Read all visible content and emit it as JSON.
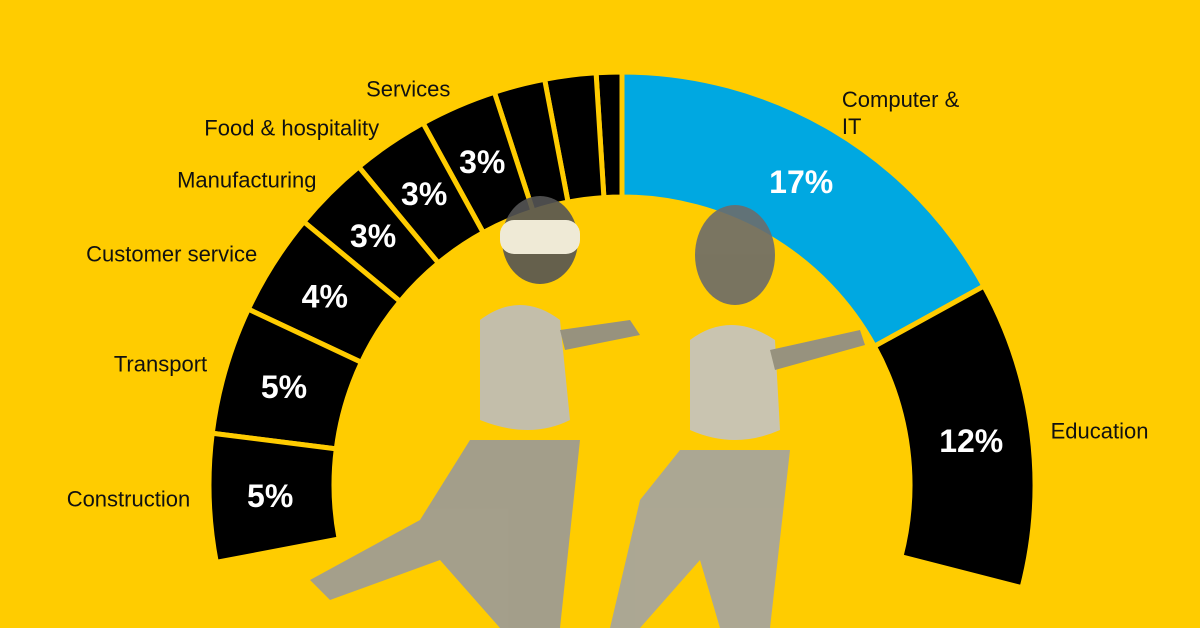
{
  "chart_data": {
    "type": "donut",
    "categories": [
      "Computer & IT",
      "Education",
      null,
      null,
      null,
      "Services",
      "Food & hospitality",
      "Manufacturing",
      "Customer service",
      "Transport",
      "Construction"
    ],
    "values": [
      17,
      12,
      1,
      2,
      2,
      3,
      3,
      3,
      4,
      5,
      5
    ],
    "value_labels": [
      "17%",
      "12%",
      null,
      null,
      null,
      "3%",
      "3%",
      "3%",
      "4%",
      "5%",
      "5%"
    ],
    "colors": [
      "#00a8e1",
      "#000000",
      "#000000",
      "#000000",
      "#000000",
      "#000000",
      "#000000",
      "#000000",
      "#000000",
      "#000000",
      "#000000"
    ],
    "background": "#ffcc00"
  }
}
